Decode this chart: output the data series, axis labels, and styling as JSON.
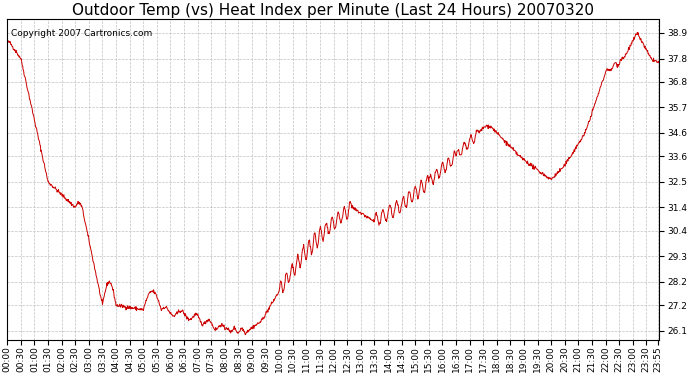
{
  "title": "Outdoor Temp (vs) Heat Index per Minute (Last 24 Hours) 20070320",
  "copyright_text": "Copyright 2007 Cartronics.com",
  "line_color": "#cc0000",
  "background_color": "#ffffff",
  "plot_bg_color": "#ffffff",
  "grid_color": "#bbbbbb",
  "yticks": [
    26.1,
    27.2,
    28.2,
    29.3,
    30.4,
    31.4,
    32.5,
    33.6,
    34.6,
    35.7,
    36.8,
    37.8,
    38.9
  ],
  "ylim": [
    25.7,
    39.5
  ],
  "title_fontsize": 11,
  "tick_fontsize": 6.5,
  "copyright_fontsize": 6.5
}
